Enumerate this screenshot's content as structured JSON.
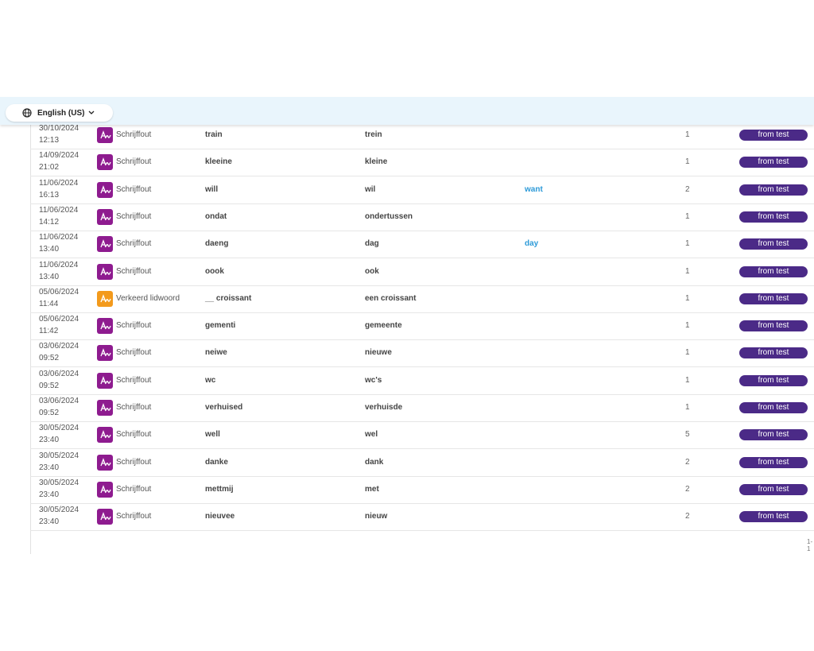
{
  "header": {
    "language": "English (US)"
  },
  "table": {
    "rows": [
      {
        "date": "30/10/2024",
        "time": "12:13",
        "type": "Schrijffout",
        "icon": "#8e1b8f",
        "wrong": "train",
        "correct": "trein",
        "count": 1,
        "tag": "from test"
      },
      {
        "date": "14/09/2024",
        "time": "21:02",
        "type": "Schrijffout",
        "icon": "#8e1b8f",
        "wrong": "kleeine",
        "correct": "kleine",
        "count": 1,
        "tag": "from test"
      },
      {
        "date": "11/06/2024",
        "time": "16:13",
        "type": "Schrijffout",
        "icon": "#8e1b8f",
        "wrong": "will",
        "correct": "wil",
        "translation": "want",
        "count": 2,
        "tag": "from test"
      },
      {
        "date": "11/06/2024",
        "time": "14:12",
        "type": "Schrijffout",
        "icon": "#8e1b8f",
        "wrong": "ondat",
        "correct": "ondertussen",
        "count": 1,
        "tag": "from test"
      },
      {
        "date": "11/06/2024",
        "time": "13:40",
        "type": "Schrijffout",
        "icon": "#8e1b8f",
        "wrong": "daeng",
        "correct": "dag",
        "translation": "day",
        "count": 1,
        "tag": "from test"
      },
      {
        "date": "11/06/2024",
        "time": "13:40",
        "type": "Schrijffout",
        "icon": "#8e1b8f",
        "wrong": "oook",
        "correct": "ook",
        "count": 1,
        "tag": "from test"
      },
      {
        "date": "05/06/2024",
        "time": "11:44",
        "type": "Verkeerd lidwoord",
        "icon": "#f39a1c",
        "wrong": "__ croissant",
        "correct": "een croissant",
        "count": 1,
        "tag": "from test"
      },
      {
        "date": "05/06/2024",
        "time": "11:42",
        "type": "Schrijffout",
        "icon": "#8e1b8f",
        "wrong": "gementi",
        "correct": "gemeente",
        "count": 1,
        "tag": "from test"
      },
      {
        "date": "03/06/2024",
        "time": "09:52",
        "type": "Schrijffout",
        "icon": "#8e1b8f",
        "wrong": "neiwe",
        "correct": "nieuwe",
        "count": 1,
        "tag": "from test"
      },
      {
        "date": "03/06/2024",
        "time": "09:52",
        "type": "Schrijffout",
        "icon": "#8e1b8f",
        "wrong": "wc",
        "correct": "wc's",
        "count": 1,
        "tag": "from test"
      },
      {
        "date": "03/06/2024",
        "time": "09:52",
        "type": "Schrijffout",
        "icon": "#8e1b8f",
        "wrong": "verhuised",
        "correct": "verhuisde",
        "count": 1,
        "tag": "from test"
      },
      {
        "date": "30/05/2024",
        "time": "23:40",
        "type": "Schrijffout",
        "icon": "#8e1b8f",
        "wrong": "well",
        "correct": "wel",
        "count": 5,
        "tag": "from test"
      },
      {
        "date": "30/05/2024",
        "time": "23:40",
        "type": "Schrijffout",
        "icon": "#8e1b8f",
        "wrong": "danke",
        "correct": "dank",
        "count": 2,
        "tag": "from test"
      },
      {
        "date": "30/05/2024",
        "time": "23:40",
        "type": "Schrijffout",
        "icon": "#8e1b8f",
        "wrong": "mettmij",
        "correct": "met",
        "count": 2,
        "tag": "from test"
      },
      {
        "date": "30/05/2024",
        "time": "23:40",
        "type": "Schrijffout",
        "icon": "#8e1b8f",
        "wrong": "nieuvee",
        "correct": "nieuw",
        "count": 2,
        "tag": "from test"
      }
    ]
  },
  "footer": {
    "pagination": "1-1"
  }
}
